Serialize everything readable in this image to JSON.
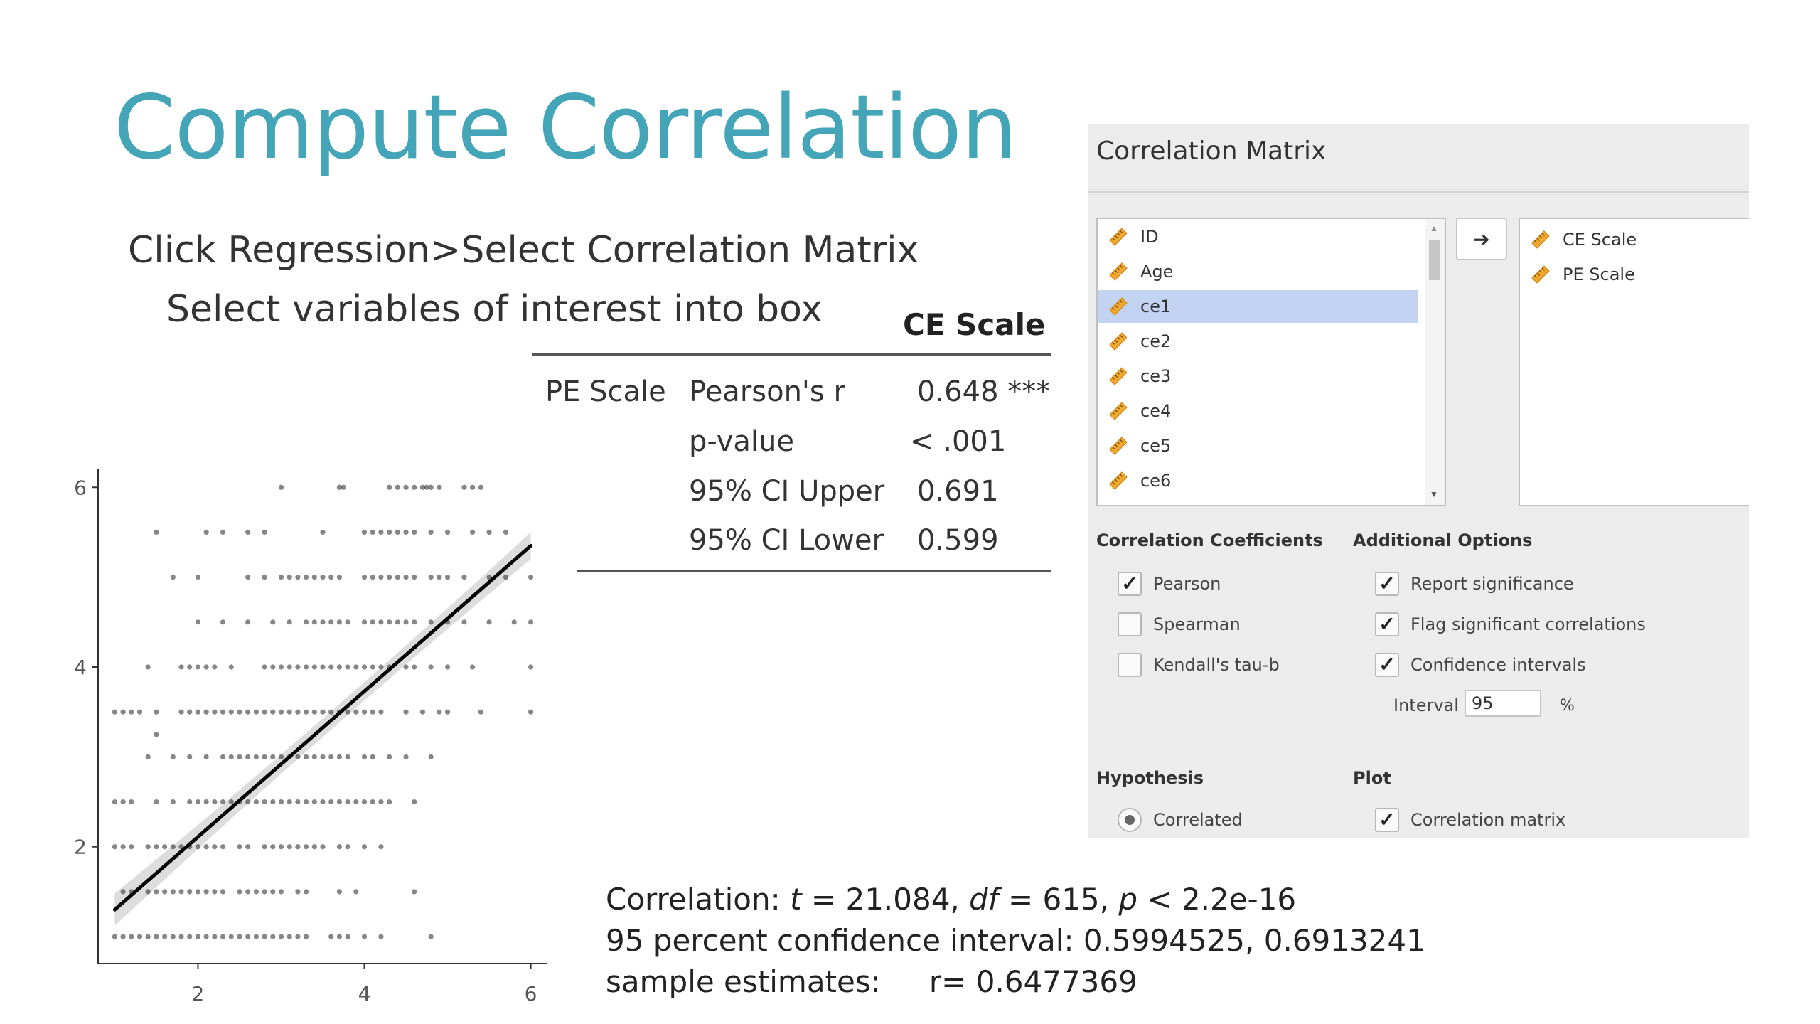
{
  "slide": {
    "title": "Compute Correlation",
    "instruction_1": "Click Regression>Select Correlation Matrix",
    "instruction_2": "Select variables of interest into box"
  },
  "results_table": {
    "column_header": "CE Scale",
    "row_label": "PE Scale",
    "rows": [
      {
        "stat": "Pearson's r",
        "value": "0.648 ***"
      },
      {
        "stat": "p-value",
        "value": "< .001"
      },
      {
        "stat": "95% CI Upper",
        "value": "0.691"
      },
      {
        "stat": "95% CI Lower",
        "value": "0.599"
      }
    ]
  },
  "r_output": {
    "line1_prefix": "Correlation: ",
    "t_sym": "t",
    "t_val": " = 21.084, ",
    "df_sym": "df",
    "df_val": " = 615, ",
    "p_sym": "p",
    "p_val": " < 2.2e-16",
    "line2": "95 percent confidence interval: 0.5994525, 0.6913241",
    "line3_label": "sample estimates:",
    "line3_value": "r= 0.6477369"
  },
  "panel": {
    "title": "Correlation Matrix",
    "variables": [
      "ID",
      "Age",
      "ce1",
      "ce2",
      "ce3",
      "ce4",
      "ce5",
      "ce6"
    ],
    "selected_variable": "ce1",
    "arrow_icon": "arrow-right-icon",
    "target_variables": [
      "CE Scale",
      "PE Scale"
    ],
    "variable_icon_color": "#f0a830",
    "selection_color": "#c3d3f2",
    "coefficients": {
      "header": "Correlation Coefficients",
      "items": [
        {
          "label": "Pearson",
          "checked": true
        },
        {
          "label": "Spearman",
          "checked": false
        },
        {
          "label": "Kendall's tau-b",
          "checked": false
        }
      ]
    },
    "additional": {
      "header": "Additional Options",
      "items": [
        {
          "label": "Report significance",
          "checked": true
        },
        {
          "label": "Flag significant correlations",
          "checked": true
        },
        {
          "label": "Confidence intervals",
          "checked": true
        }
      ],
      "interval_label": "Interval",
      "interval_value": "95",
      "interval_unit": "%"
    },
    "hypothesis": {
      "header": "Hypothesis",
      "option": "Correlated",
      "selected": true
    },
    "plot": {
      "header": "Plot",
      "option": "Correlation matrix",
      "checked": true
    }
  },
  "chart_data": {
    "type": "scatter",
    "title": "",
    "xlabel": "",
    "ylabel": "",
    "xlim": [
      0.8,
      6.2
    ],
    "ylim": [
      0.7,
      6.2
    ],
    "x_ticks": [
      "2",
      "4",
      "6"
    ],
    "y_ticks": [
      "2",
      "4",
      "6"
    ],
    "grid": false,
    "fit_line": {
      "x": [
        1.0,
        6.0
      ],
      "y": [
        1.3,
        5.35
      ]
    },
    "points_rows": [
      {
        "y": 6.0,
        "x": [
          3.0,
          3.7,
          3.75,
          4.3,
          4.4,
          4.5,
          4.6,
          4.7,
          4.75,
          4.8,
          4.9,
          5.2,
          5.3,
          5.4
        ]
      },
      {
        "y": 5.5,
        "x": [
          1.5,
          2.1,
          2.3,
          2.6,
          2.8,
          3.5,
          4.0,
          4.1,
          4.2,
          4.3,
          4.4,
          4.5,
          4.6,
          4.8,
          5.0,
          5.3,
          5.5,
          5.7
        ]
      },
      {
        "y": 5.0,
        "x": [
          1.7,
          2.0,
          2.6,
          2.8,
          3.0,
          3.1,
          3.2,
          3.3,
          3.4,
          3.5,
          3.6,
          3.7,
          4.0,
          4.1,
          4.2,
          4.3,
          4.4,
          4.5,
          4.6,
          4.8,
          4.9,
          5.0,
          5.2,
          5.5,
          5.7,
          6.0
        ]
      },
      {
        "y": 4.5,
        "x": [
          2.0,
          2.3,
          2.6,
          2.9,
          3.1,
          3.3,
          3.4,
          3.5,
          3.6,
          3.7,
          3.8,
          4.0,
          4.1,
          4.2,
          4.3,
          4.4,
          4.5,
          4.6,
          4.8,
          5.0,
          5.2,
          5.5,
          5.8,
          6.0
        ]
      },
      {
        "y": 4.0,
        "x": [
          1.4,
          1.8,
          1.9,
          2.0,
          2.1,
          2.2,
          2.4,
          2.8,
          2.9,
          3.0,
          3.1,
          3.2,
          3.3,
          3.4,
          3.5,
          3.6,
          3.7,
          3.8,
          3.9,
          4.0,
          4.1,
          4.2,
          4.3,
          4.5,
          4.6,
          4.8,
          5.0,
          5.3,
          6.0
        ]
      },
      {
        "y": 3.5,
        "x": [
          1.0,
          1.1,
          1.2,
          1.3,
          1.5,
          1.8,
          1.9,
          2.0,
          2.1,
          2.2,
          2.3,
          2.4,
          2.5,
          2.6,
          2.7,
          2.8,
          2.9,
          3.0,
          3.1,
          3.2,
          3.3,
          3.4,
          3.5,
          3.6,
          3.7,
          3.8,
          3.9,
          4.0,
          4.1,
          4.2,
          4.5,
          4.7,
          4.9,
          5.0,
          5.4,
          6.0
        ]
      },
      {
        "y": 3.25,
        "x": [
          1.5
        ]
      },
      {
        "y": 3.0,
        "x": [
          1.4,
          1.7,
          1.9,
          2.1,
          2.3,
          2.4,
          2.5,
          2.6,
          2.7,
          2.8,
          2.9,
          3.0,
          3.1,
          3.2,
          3.3,
          3.4,
          3.5,
          3.6,
          3.7,
          3.8,
          4.0,
          4.1,
          4.3,
          4.5,
          4.8
        ]
      },
      {
        "y": 2.5,
        "x": [
          1.0,
          1.1,
          1.2,
          1.5,
          1.7,
          1.9,
          2.0,
          2.1,
          2.2,
          2.3,
          2.4,
          2.5,
          2.6,
          2.7,
          2.8,
          2.9,
          3.0,
          3.1,
          3.2,
          3.3,
          3.4,
          3.5,
          3.6,
          3.7,
          3.8,
          3.9,
          4.0,
          4.1,
          4.2,
          4.3,
          4.6
        ]
      },
      {
        "y": 2.0,
        "x": [
          1.0,
          1.1,
          1.2,
          1.4,
          1.5,
          1.6,
          1.7,
          1.8,
          1.9,
          2.0,
          2.1,
          2.2,
          2.3,
          2.5,
          2.6,
          2.8,
          2.9,
          3.0,
          3.1,
          3.2,
          3.3,
          3.4,
          3.5,
          3.7,
          3.8,
          4.0,
          4.2
        ]
      },
      {
        "y": 1.5,
        "x": [
          1.1,
          1.2,
          1.4,
          1.5,
          1.6,
          1.7,
          1.8,
          1.9,
          2.0,
          2.1,
          2.2,
          2.3,
          2.5,
          2.6,
          2.7,
          2.8,
          2.9,
          3.0,
          3.2,
          3.3,
          3.7,
          3.9,
          4.6
        ]
      },
      {
        "y": 1.0,
        "x": [
          1.0,
          1.1,
          1.2,
          1.3,
          1.4,
          1.5,
          1.6,
          1.7,
          1.8,
          1.9,
          2.0,
          2.1,
          2.2,
          2.3,
          2.4,
          2.5,
          2.6,
          2.7,
          2.8,
          2.9,
          3.0,
          3.1,
          3.2,
          3.3,
          3.6,
          3.7,
          3.8,
          4.0,
          4.2,
          4.8
        ]
      }
    ]
  }
}
